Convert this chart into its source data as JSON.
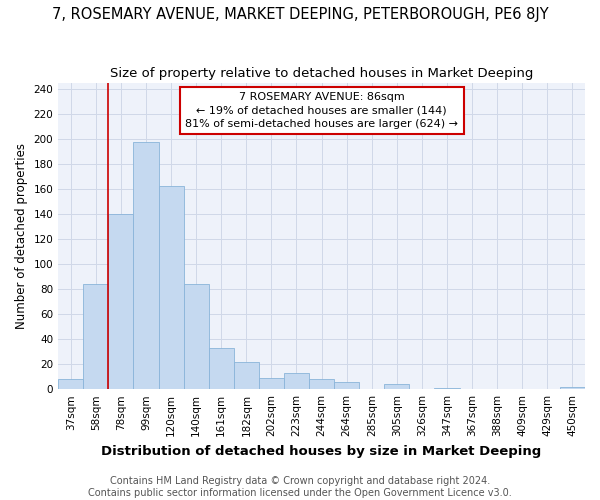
{
  "title": "7, ROSEMARY AVENUE, MARKET DEEPING, PETERBOROUGH, PE6 8JY",
  "subtitle": "Size of property relative to detached houses in Market Deeping",
  "xlabel": "Distribution of detached houses by size in Market Deeping",
  "ylabel": "Number of detached properties",
  "categories": [
    "37sqm",
    "58sqm",
    "78sqm",
    "99sqm",
    "120sqm",
    "140sqm",
    "161sqm",
    "182sqm",
    "202sqm",
    "223sqm",
    "244sqm",
    "264sqm",
    "285sqm",
    "305sqm",
    "326sqm",
    "347sqm",
    "367sqm",
    "388sqm",
    "409sqm",
    "429sqm",
    "450sqm"
  ],
  "values": [
    8,
    84,
    140,
    198,
    163,
    84,
    33,
    22,
    9,
    13,
    8,
    6,
    0,
    4,
    0,
    1,
    0,
    0,
    0,
    0,
    2
  ],
  "bar_color": "#c5d9f0",
  "bar_edge_color": "#8ab4d9",
  "vline_color": "#cc0000",
  "annotation_box_color": "#ffffff",
  "annotation_box_edge": "#cc0000",
  "property_label": "7 ROSEMARY AVENUE: 86sqm",
  "annotation_line1": "← 19% of detached houses are smaller (144)",
  "annotation_line2": "81% of semi-detached houses are larger (624) →",
  "ylim": [
    0,
    245
  ],
  "yticks": [
    0,
    20,
    40,
    60,
    80,
    100,
    120,
    140,
    160,
    180,
    200,
    220,
    240
  ],
  "grid_color": "#d0d8e8",
  "bg_color": "#eef2fa",
  "footer_line1": "Contains HM Land Registry data © Crown copyright and database right 2024.",
  "footer_line2": "Contains public sector information licensed under the Open Government Licence v3.0.",
  "title_fontsize": 10.5,
  "subtitle_fontsize": 9.5,
  "xlabel_fontsize": 9.5,
  "ylabel_fontsize": 8.5,
  "tick_fontsize": 7.5,
  "annot_fontsize": 8,
  "footer_fontsize": 7
}
